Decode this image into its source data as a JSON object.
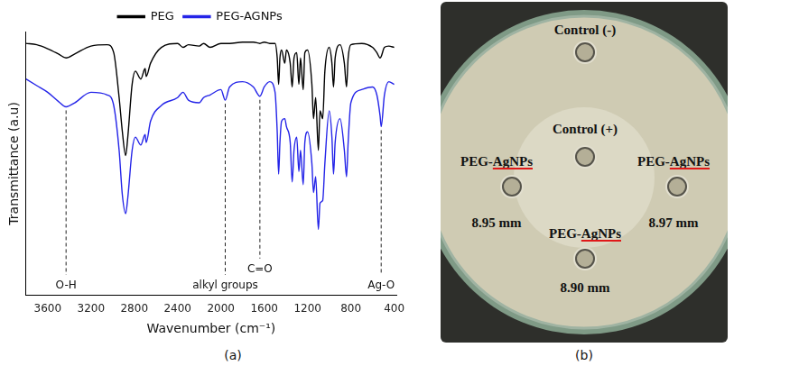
{
  "chart_data": {
    "type": "line",
    "x_label": "Wavenumber (cm⁻¹)",
    "y_label": "Transmittance (a.u)",
    "legend": "top",
    "grid": false,
    "tick_labels": "x",
    "xlim": [
      3800,
      380
    ],
    "xticks": [
      3600,
      3200,
      2800,
      2400,
      2000,
      1600,
      1200,
      800,
      400
    ],
    "ylim": [
      0,
      100
    ],
    "x": [
      3800,
      3700,
      3600,
      3500,
      3430,
      3350,
      3200,
      3050,
      2990,
      2940,
      2910,
      2880,
      2860,
      2820,
      2790,
      2740,
      2700,
      2690,
      2650,
      2550,
      2400,
      2350,
      2300,
      2200,
      2160,
      2100,
      2000,
      1960,
      1920,
      1800,
      1700,
      1640,
      1600,
      1550,
      1500,
      1480,
      1467,
      1455,
      1440,
      1410,
      1395,
      1360,
      1342,
      1325,
      1300,
      1280,
      1265,
      1240,
      1225,
      1200,
      1160,
      1145,
      1125,
      1100,
      1085,
      1060,
      1040,
      1000,
      975,
      960,
      945,
      900,
      860,
      840,
      825,
      800,
      700,
      600,
      560,
      530,
      520,
      490,
      450,
      400
    ],
    "series": [
      {
        "name": "PEG",
        "color": "#000000",
        "values": [
          95.5,
          95,
          93.5,
          91.5,
          90,
          91.5,
          94.5,
          95,
          92,
          75,
          62,
          53,
          60,
          80,
          85,
          82,
          86,
          83,
          88,
          94,
          95.5,
          94,
          95,
          94.5,
          95.5,
          94,
          95.5,
          95.5,
          95.5,
          96,
          96,
          95.5,
          96,
          95.5,
          95.5,
          90,
          80,
          90,
          93,
          88,
          93,
          88,
          79,
          90,
          92,
          80,
          90,
          78,
          92,
          93,
          80,
          67,
          75,
          55,
          70,
          67,
          85,
          94,
          88,
          79,
          90,
          95,
          88,
          79,
          90,
          95,
          95.5,
          94,
          92,
          90,
          90.5,
          94,
          94.5,
          94
        ]
      },
      {
        "name": "PEG-AGNPs",
        "color": "#2424e8",
        "values": [
          82,
          79.5,
          77,
          73.5,
          71.5,
          73,
          77,
          76,
          72,
          55,
          38,
          31,
          37,
          55,
          60,
          57,
          61,
          58,
          66,
          72,
          75,
          77,
          74,
          73,
          75,
          76,
          78,
          74,
          79,
          81,
          79,
          75.5,
          79,
          81,
          77,
          62,
          46,
          58,
          66,
          67,
          64,
          58,
          43,
          55,
          60,
          47,
          55,
          42,
          58,
          62,
          50,
          39,
          45,
          25,
          35,
          36,
          50,
          70,
          60,
          46,
          58,
          67,
          55,
          45,
          58,
          73,
          78,
          79,
          76,
          68,
          64,
          76,
          81,
          80
        ]
      }
    ],
    "annotations": [
      {
        "x": 3430,
        "text": "O-H"
      },
      {
        "x": 1960,
        "text": "alkyl groups"
      },
      {
        "x": 1640,
        "text": "C=O"
      },
      {
        "x": 520,
        "text": "Ag-O"
      }
    ]
  },
  "panel_labels": [
    "(a)",
    "(b)"
  ],
  "plate": {
    "negative_control": "Control (-)",
    "positive_control": "Control (+)",
    "samples": [
      {
        "label": "PEG-AgNPs",
        "zone": "8.95 mm"
      },
      {
        "label": "PEG-AgNPs",
        "zone": "8.97 mm"
      },
      {
        "label": "PEG-AgNPs",
        "zone": "8.90 mm"
      }
    ]
  }
}
